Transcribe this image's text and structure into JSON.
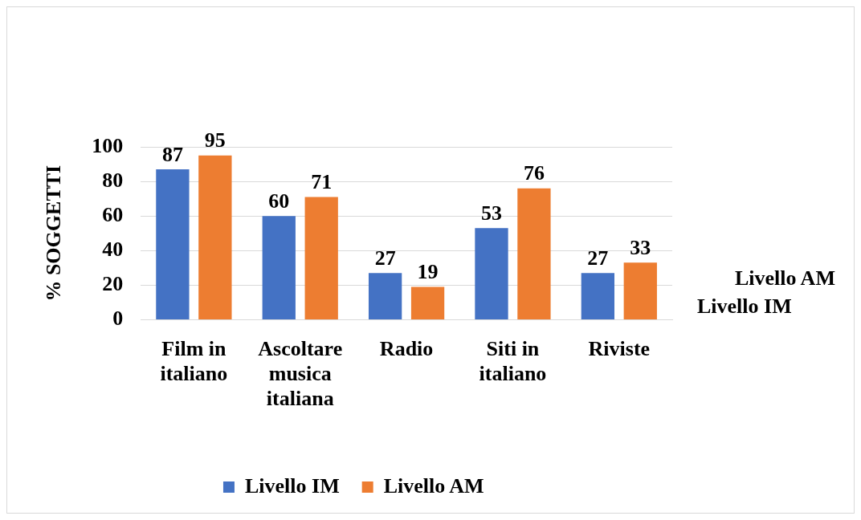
{
  "chart_data": {
    "type": "bar",
    "categories": [
      "Film in italiano",
      "Ascoltare musica italiana",
      "Radio",
      "Siti in italiano",
      "Riviste"
    ],
    "series": [
      {
        "name": "Livello IM",
        "color": "#4472c4",
        "values": [
          87,
          60,
          27,
          53,
          27
        ]
      },
      {
        "name": "Livello AM",
        "color": "#ed7d31",
        "values": [
          95,
          71,
          19,
          76,
          33
        ]
      }
    ],
    "ylabel": "% SOGGETTI",
    "ylim": [
      0,
      100
    ],
    "yticks": [
      0,
      20,
      40,
      60,
      80,
      100
    ],
    "grid": "y",
    "legend": "bottom",
    "data_labels": true
  }
}
